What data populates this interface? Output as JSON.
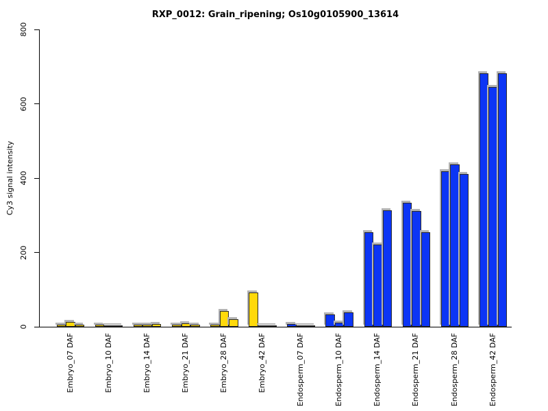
{
  "chart_data": {
    "type": "bar",
    "title": "RXP_0012: Grain_ripening; Os10g0105900_13614",
    "ylabel": "Cy3 signal intensity",
    "xlabel": "",
    "ylim": [
      0,
      800
    ],
    "yticks": [
      0,
      200,
      400,
      600,
      800
    ],
    "grid": false,
    "legend": false,
    "replicates_per_category": 3,
    "categories": [
      "Embryo_07 DAF",
      "Embryo_10 DAF",
      "Embryo_14 DAF",
      "Embryo_21 DAF",
      "Embryo_28 DAF",
      "Embryo_42 DAF",
      "Endosperm_07 DAF",
      "Endosperm_10 DAF",
      "Endosperm_14 DAF",
      "Endosperm_21 DAF",
      "Endosperm_28 DAF",
      "Endosperm_42 DAF"
    ],
    "values": [
      [
        5,
        13,
        5
      ],
      [
        5,
        4,
        4
      ],
      [
        6,
        6,
        8
      ],
      [
        5,
        10,
        6
      ],
      [
        6,
        43,
        20
      ],
      [
        93,
        4,
        4
      ],
      [
        7,
        4,
        3
      ],
      [
        33,
        11,
        39
      ],
      [
        255,
        222,
        313
      ],
      [
        334,
        311,
        255
      ],
      [
        419,
        437,
        411
      ],
      [
        683,
        646,
        682
      ]
    ],
    "group_colors": [
      "#ffd90a",
      "#ffd90a",
      "#ffd90a",
      "#ffd90a",
      "#ffd90a",
      "#ffd90a",
      "#0c35f5",
      "#0c35f5",
      "#0c35f5",
      "#0c35f5",
      "#0c35f5",
      "#0c35f5"
    ],
    "colors": {
      "embryo_bar": "#ffd90a",
      "endosperm_bar": "#0c35f5",
      "bar_border": "#2b2b2b",
      "bar_shadow": "#b4b4b4",
      "axis": "#000000",
      "background": "#ffffff"
    }
  }
}
